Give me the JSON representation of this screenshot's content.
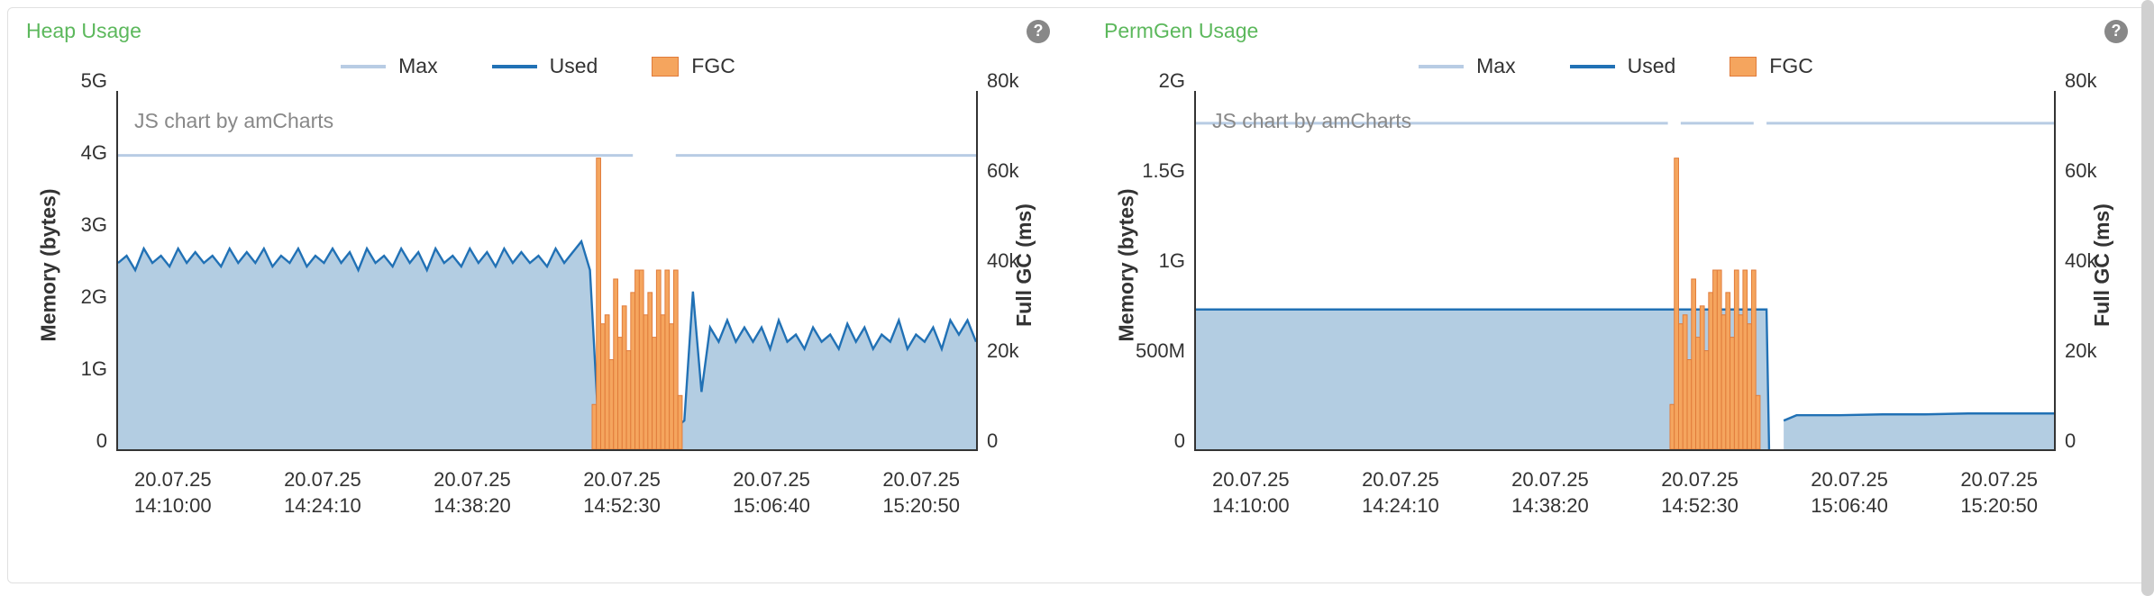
{
  "panels": [
    {
      "title": "Heap Usage",
      "title_color": "#5cb85c",
      "watermark": "JS chart by amCharts",
      "legend": [
        {
          "label": "Max",
          "style": "max"
        },
        {
          "label": "Used",
          "style": "used"
        },
        {
          "label": "FGC",
          "style": "fgc"
        }
      ],
      "y_left_label": "Memory (bytes)",
      "y_right_label": "Full GC (ms)",
      "y_left_ticks": [
        "5G",
        "4G",
        "3G",
        "2G",
        "1G",
        "0"
      ],
      "y_right_ticks": [
        "80k",
        "60k",
        "40k",
        "20k",
        "0"
      ],
      "y_left_range": [
        0,
        5
      ],
      "y_right_range": [
        0,
        80
      ],
      "x_ticks": [
        {
          "date": "20.07.25",
          "time": "14:10:00"
        },
        {
          "date": "20.07.25",
          "time": "14:24:10"
        },
        {
          "date": "20.07.25",
          "time": "14:38:20"
        },
        {
          "date": "20.07.25",
          "time": "14:52:30"
        },
        {
          "date": "20.07.25",
          "time": "15:06:40"
        },
        {
          "date": "20.07.25",
          "time": "15:20:50"
        }
      ],
      "colors": {
        "max_line": "#b8cce4",
        "used_fill": "#a6c4dd",
        "used_line": "#2171b5",
        "fgc_fill": "#f5a55e",
        "fgc_stroke": "#e07b3a",
        "axis": "#333333"
      },
      "max_line_y": 4.1,
      "max_line_gaps": [
        [
          0.6,
          0.65
        ]
      ],
      "used_series": [
        [
          0.0,
          2.6
        ],
        [
          0.01,
          2.7
        ],
        [
          0.02,
          2.5
        ],
        [
          0.03,
          2.8
        ],
        [
          0.04,
          2.6
        ],
        [
          0.05,
          2.7
        ],
        [
          0.06,
          2.55
        ],
        [
          0.07,
          2.8
        ],
        [
          0.08,
          2.6
        ],
        [
          0.09,
          2.75
        ],
        [
          0.1,
          2.6
        ],
        [
          0.11,
          2.7
        ],
        [
          0.12,
          2.55
        ],
        [
          0.13,
          2.8
        ],
        [
          0.14,
          2.6
        ],
        [
          0.15,
          2.75
        ],
        [
          0.16,
          2.6
        ],
        [
          0.17,
          2.8
        ],
        [
          0.18,
          2.55
        ],
        [
          0.19,
          2.7
        ],
        [
          0.2,
          2.6
        ],
        [
          0.21,
          2.8
        ],
        [
          0.22,
          2.55
        ],
        [
          0.23,
          2.7
        ],
        [
          0.24,
          2.6
        ],
        [
          0.25,
          2.8
        ],
        [
          0.26,
          2.6
        ],
        [
          0.27,
          2.75
        ],
        [
          0.28,
          2.5
        ],
        [
          0.29,
          2.8
        ],
        [
          0.3,
          2.6
        ],
        [
          0.31,
          2.7
        ],
        [
          0.32,
          2.55
        ],
        [
          0.33,
          2.8
        ],
        [
          0.34,
          2.6
        ],
        [
          0.35,
          2.75
        ],
        [
          0.36,
          2.5
        ],
        [
          0.37,
          2.8
        ],
        [
          0.38,
          2.6
        ],
        [
          0.39,
          2.7
        ],
        [
          0.4,
          2.55
        ],
        [
          0.41,
          2.8
        ],
        [
          0.42,
          2.6
        ],
        [
          0.43,
          2.75
        ],
        [
          0.44,
          2.55
        ],
        [
          0.45,
          2.8
        ],
        [
          0.46,
          2.6
        ],
        [
          0.47,
          2.75
        ],
        [
          0.48,
          2.6
        ],
        [
          0.49,
          2.7
        ],
        [
          0.5,
          2.55
        ],
        [
          0.51,
          2.8
        ],
        [
          0.52,
          2.6
        ],
        [
          0.53,
          2.75
        ],
        [
          0.54,
          2.9
        ],
        [
          0.55,
          2.5
        ],
        [
          0.56,
          0.3
        ],
        [
          0.57,
          0.2
        ],
        [
          0.58,
          0.25
        ],
        [
          0.59,
          0.2
        ],
        [
          0.6,
          0.25
        ],
        [
          0.61,
          0.2
        ],
        [
          0.62,
          0.25
        ],
        [
          0.63,
          0.2
        ],
        [
          0.64,
          0.3
        ],
        [
          0.65,
          0.3
        ],
        [
          0.66,
          0.4
        ],
        [
          0.67,
          2.2
        ],
        [
          0.68,
          0.8
        ],
        [
          0.69,
          1.7
        ],
        [
          0.7,
          1.5
        ],
        [
          0.71,
          1.8
        ],
        [
          0.72,
          1.5
        ],
        [
          0.73,
          1.7
        ],
        [
          0.74,
          1.5
        ],
        [
          0.75,
          1.7
        ],
        [
          0.76,
          1.4
        ],
        [
          0.77,
          1.8
        ],
        [
          0.78,
          1.5
        ],
        [
          0.79,
          1.6
        ],
        [
          0.8,
          1.4
        ],
        [
          0.81,
          1.7
        ],
        [
          0.82,
          1.5
        ],
        [
          0.83,
          1.6
        ],
        [
          0.84,
          1.4
        ],
        [
          0.85,
          1.75
        ],
        [
          0.86,
          1.5
        ],
        [
          0.87,
          1.7
        ],
        [
          0.88,
          1.4
        ],
        [
          0.89,
          1.6
        ],
        [
          0.9,
          1.5
        ],
        [
          0.91,
          1.8
        ],
        [
          0.92,
          1.4
        ],
        [
          0.93,
          1.6
        ],
        [
          0.94,
          1.5
        ],
        [
          0.95,
          1.7
        ],
        [
          0.96,
          1.4
        ],
        [
          0.97,
          1.8
        ],
        [
          0.98,
          1.6
        ],
        [
          0.99,
          1.8
        ],
        [
          1.0,
          1.5
        ]
      ],
      "fgc_bars": [
        [
          0.555,
          10
        ],
        [
          0.56,
          65
        ],
        [
          0.565,
          28
        ],
        [
          0.57,
          30
        ],
        [
          0.575,
          20
        ],
        [
          0.58,
          38
        ],
        [
          0.585,
          25
        ],
        [
          0.59,
          32
        ],
        [
          0.595,
          22
        ],
        [
          0.6,
          35
        ],
        [
          0.605,
          40
        ],
        [
          0.61,
          40
        ],
        [
          0.615,
          30
        ],
        [
          0.62,
          35
        ],
        [
          0.625,
          25
        ],
        [
          0.63,
          40
        ],
        [
          0.635,
          30
        ],
        [
          0.64,
          40
        ],
        [
          0.645,
          28
        ],
        [
          0.65,
          40
        ],
        [
          0.655,
          12
        ]
      ],
      "fgc_bar_width": 0.005
    },
    {
      "title": "PermGen Usage",
      "title_color": "#5cb85c",
      "watermark": "JS chart by amCharts",
      "legend": [
        {
          "label": "Max",
          "style": "max"
        },
        {
          "label": "Used",
          "style": "used"
        },
        {
          "label": "FGC",
          "style": "fgc"
        }
      ],
      "y_left_label": "Memory (bytes)",
      "y_right_label": "Full GC (ms)",
      "y_left_ticks": [
        "2G",
        "1.5G",
        "1G",
        "500M",
        "0"
      ],
      "y_left_range": [
        0,
        2
      ],
      "y_right_ticks": [
        "80k",
        "60k",
        "40k",
        "20k",
        "0"
      ],
      "y_right_range": [
        0,
        80
      ],
      "x_ticks": [
        {
          "date": "20.07.25",
          "time": "14:10:00"
        },
        {
          "date": "20.07.25",
          "time": "14:24:10"
        },
        {
          "date": "20.07.25",
          "time": "14:38:20"
        },
        {
          "date": "20.07.25",
          "time": "14:52:30"
        },
        {
          "date": "20.07.25",
          "time": "15:06:40"
        },
        {
          "date": "20.07.25",
          "time": "15:20:50"
        }
      ],
      "colors": {
        "max_line": "#b8cce4",
        "used_fill": "#a6c4dd",
        "used_line": "#2171b5",
        "fgc_fill": "#f5a55e",
        "fgc_stroke": "#e07b3a",
        "axis": "#333333"
      },
      "max_line_y": 1.82,
      "max_line_gaps": [
        [
          0.55,
          0.565
        ],
        [
          0.65,
          0.665
        ]
      ],
      "used_series": [
        [
          0.0,
          0.78
        ],
        [
          0.1,
          0.78
        ],
        [
          0.2,
          0.78
        ],
        [
          0.3,
          0.78
        ],
        [
          0.4,
          0.78
        ],
        [
          0.5,
          0.78
        ],
        [
          0.55,
          0.78
        ],
        [
          0.6,
          0.78
        ],
        [
          0.65,
          0.78
        ],
        [
          0.66,
          0.78
        ],
        [
          0.665,
          0.78
        ],
        [
          0.668,
          0.0
        ]
      ],
      "used_series2": [
        [
          0.685,
          0.16
        ],
        [
          0.7,
          0.19
        ],
        [
          0.75,
          0.19
        ],
        [
          0.8,
          0.195
        ],
        [
          0.85,
          0.195
        ],
        [
          0.9,
          0.2
        ],
        [
          0.95,
          0.2
        ],
        [
          1.0,
          0.2
        ]
      ],
      "fgc_bars": [
        [
          0.555,
          10
        ],
        [
          0.56,
          65
        ],
        [
          0.565,
          28
        ],
        [
          0.57,
          30
        ],
        [
          0.575,
          20
        ],
        [
          0.58,
          38
        ],
        [
          0.585,
          25
        ],
        [
          0.59,
          32
        ],
        [
          0.595,
          22
        ],
        [
          0.6,
          35
        ],
        [
          0.605,
          40
        ],
        [
          0.61,
          40
        ],
        [
          0.615,
          30
        ],
        [
          0.62,
          35
        ],
        [
          0.625,
          25
        ],
        [
          0.63,
          40
        ],
        [
          0.635,
          30
        ],
        [
          0.64,
          40
        ],
        [
          0.645,
          28
        ],
        [
          0.65,
          40
        ],
        [
          0.655,
          12
        ]
      ],
      "fgc_bar_width": 0.005
    }
  ]
}
